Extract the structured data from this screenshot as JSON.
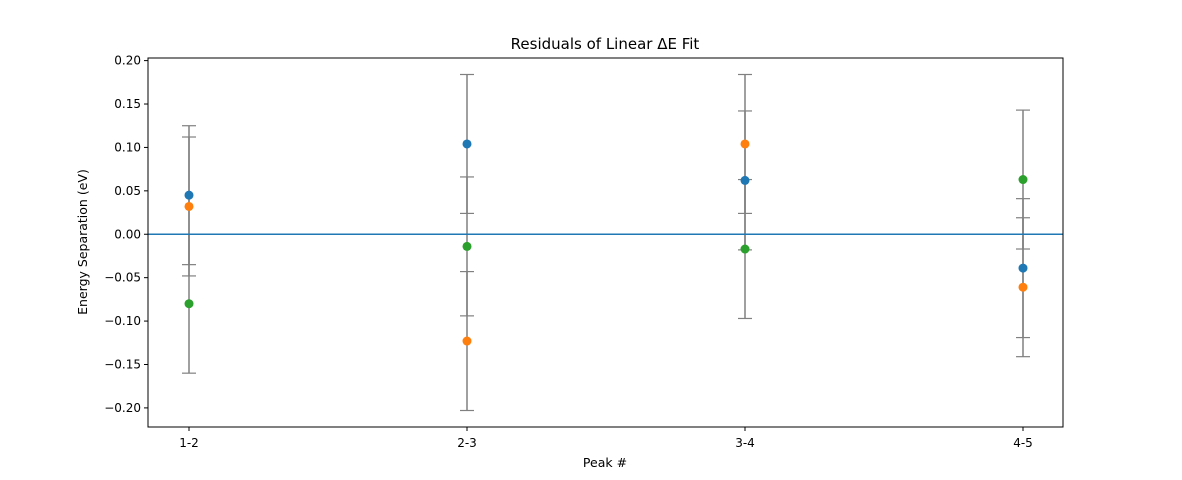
{
  "chart_data": {
    "type": "scatter",
    "title": "Residuals of Linear ΔE Fit",
    "xlabel": "Peak #",
    "ylabel": "Energy Separation (eV)",
    "categories": [
      "1-2",
      "2-3",
      "3-4",
      "4-5"
    ],
    "ylim": [
      -0.222,
      0.203
    ],
    "yticks": [
      0.2,
      0.15,
      0.1,
      0.05,
      0.0,
      -0.05,
      -0.1,
      -0.15,
      -0.2
    ],
    "ytick_labels": [
      "0.20",
      "0.15",
      "0.10",
      "0.05",
      "0.00",
      "−0.05",
      "−0.10",
      "−0.15",
      "−0.20"
    ],
    "reference_line": {
      "y": 0.0,
      "color": "#1f77b4"
    },
    "errorbar_color": "#808080",
    "series": [
      {
        "color": "#1f77b4",
        "values": [
          0.045,
          0.104,
          0.062,
          -0.039
        ],
        "errors": [
          0.08,
          0.08,
          0.08,
          0.08
        ]
      },
      {
        "color": "#ff7f0e",
        "values": [
          0.032,
          -0.123,
          0.104,
          -0.061
        ],
        "errors": [
          0.08,
          0.08,
          0.08,
          0.08
        ]
      },
      {
        "color": "#2ca02c",
        "values": [
          -0.08,
          -0.014,
          -0.017,
          0.063
        ],
        "errors": [
          0.08,
          0.08,
          0.08,
          0.08
        ]
      }
    ],
    "grid": false,
    "legend": "none"
  }
}
